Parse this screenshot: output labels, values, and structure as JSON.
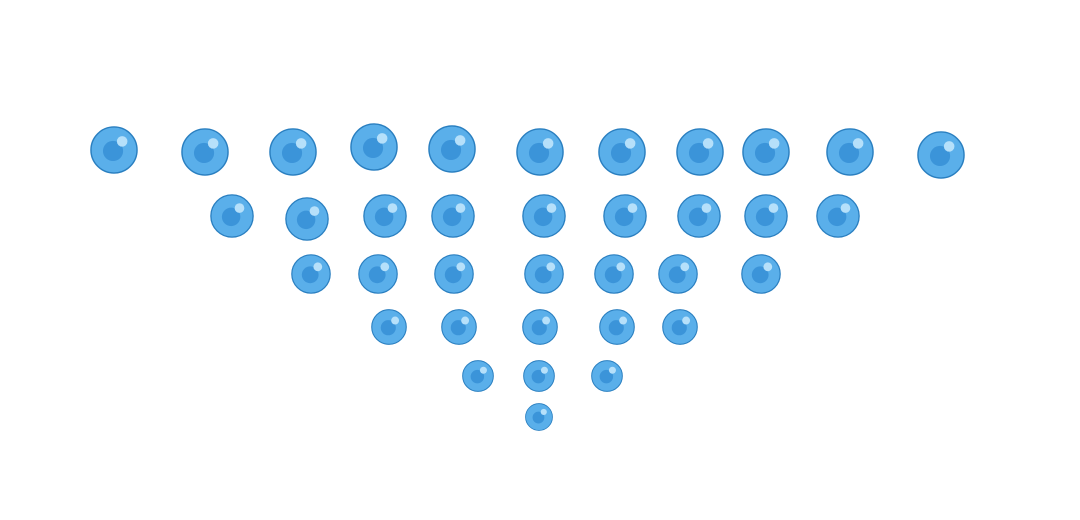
{
  "board": {
    "layout": "inverted-triangle",
    "row_counts": [
      11,
      9,
      7,
      5,
      3,
      1
    ],
    "total_bubbles": 36
  },
  "bubble_style": {
    "icon": "blue-bubble-icon",
    "fill": "#5AAFEA",
    "outline": "#2A7FC0",
    "core": "#3B94D9",
    "highlight": "#B6E0FA"
  }
}
